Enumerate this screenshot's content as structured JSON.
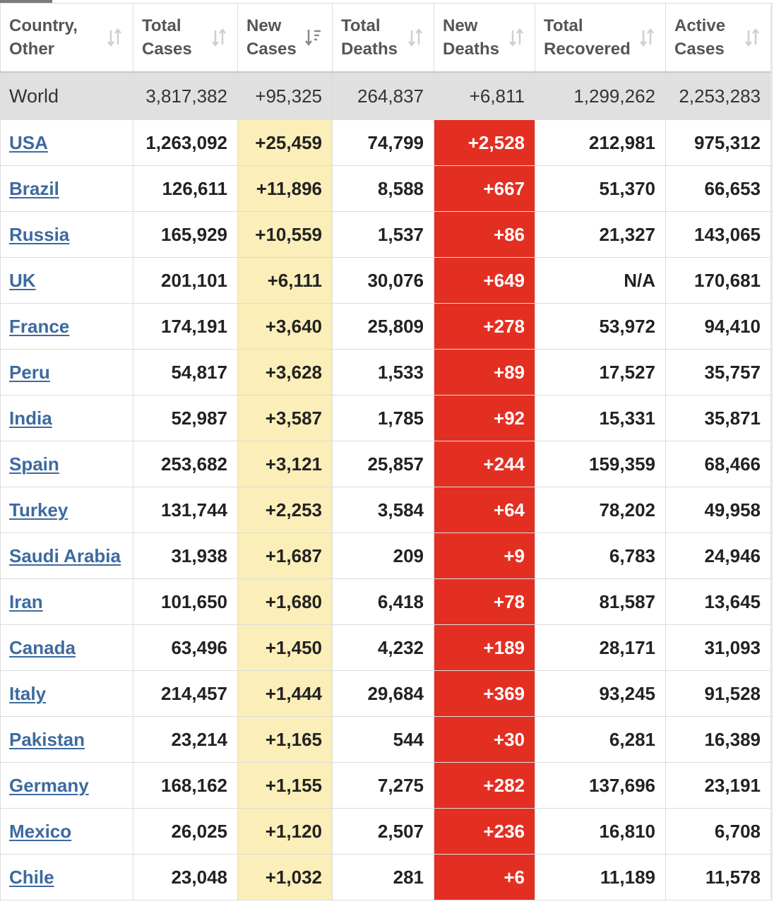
{
  "columns": [
    {
      "line1": "Country,",
      "line2": "Other",
      "sort_icon": "sort-both-icon"
    },
    {
      "line1": "Total",
      "line2": "Cases",
      "sort_icon": "sort-both-icon"
    },
    {
      "line1": "New",
      "line2": "Cases",
      "sort_icon": "sort-desc-active-icon"
    },
    {
      "line1": "Total",
      "line2": "Deaths",
      "sort_icon": "sort-both-icon"
    },
    {
      "line1": "New",
      "line2": "Deaths",
      "sort_icon": "sort-both-icon"
    },
    {
      "line1": "Total",
      "line2": "Recovered",
      "sort_icon": "sort-both-icon"
    },
    {
      "line1": "Active",
      "line2": "Cases",
      "sort_icon": "sort-both-icon"
    }
  ],
  "world": {
    "country": "World",
    "total_cases": "3,817,382",
    "new_cases": "+95,325",
    "total_deaths": "264,837",
    "new_deaths": "+6,811",
    "total_recovered": "1,299,262",
    "active_cases": "2,253,283"
  },
  "rows": [
    {
      "country": "USA",
      "total_cases": "1,263,092",
      "new_cases": "+25,459",
      "total_deaths": "74,799",
      "new_deaths": "+2,528",
      "total_recovered": "212,981",
      "active_cases": "975,312"
    },
    {
      "country": "Brazil",
      "total_cases": "126,611",
      "new_cases": "+11,896",
      "total_deaths": "8,588",
      "new_deaths": "+667",
      "total_recovered": "51,370",
      "active_cases": "66,653"
    },
    {
      "country": "Russia",
      "total_cases": "165,929",
      "new_cases": "+10,559",
      "total_deaths": "1,537",
      "new_deaths": "+86",
      "total_recovered": "21,327",
      "active_cases": "143,065"
    },
    {
      "country": "UK",
      "total_cases": "201,101",
      "new_cases": "+6,111",
      "total_deaths": "30,076",
      "new_deaths": "+649",
      "total_recovered": "N/A",
      "active_cases": "170,681"
    },
    {
      "country": "France",
      "total_cases": "174,191",
      "new_cases": "+3,640",
      "total_deaths": "25,809",
      "new_deaths": "+278",
      "total_recovered": "53,972",
      "active_cases": "94,410"
    },
    {
      "country": "Peru",
      "total_cases": "54,817",
      "new_cases": "+3,628",
      "total_deaths": "1,533",
      "new_deaths": "+89",
      "total_recovered": "17,527",
      "active_cases": "35,757"
    },
    {
      "country": "India",
      "total_cases": "52,987",
      "new_cases": "+3,587",
      "total_deaths": "1,785",
      "new_deaths": "+92",
      "total_recovered": "15,331",
      "active_cases": "35,871"
    },
    {
      "country": "Spain",
      "total_cases": "253,682",
      "new_cases": "+3,121",
      "total_deaths": "25,857",
      "new_deaths": "+244",
      "total_recovered": "159,359",
      "active_cases": "68,466"
    },
    {
      "country": "Turkey",
      "total_cases": "131,744",
      "new_cases": "+2,253",
      "total_deaths": "3,584",
      "new_deaths": "+64",
      "total_recovered": "78,202",
      "active_cases": "49,958"
    },
    {
      "country": "Saudi Arabia",
      "total_cases": "31,938",
      "new_cases": "+1,687",
      "total_deaths": "209",
      "new_deaths": "+9",
      "total_recovered": "6,783",
      "active_cases": "24,946"
    },
    {
      "country": "Iran",
      "total_cases": "101,650",
      "new_cases": "+1,680",
      "total_deaths": "6,418",
      "new_deaths": "+78",
      "total_recovered": "81,587",
      "active_cases": "13,645"
    },
    {
      "country": "Canada",
      "total_cases": "63,496",
      "new_cases": "+1,450",
      "total_deaths": "4,232",
      "new_deaths": "+189",
      "total_recovered": "28,171",
      "active_cases": "31,093"
    },
    {
      "country": "Italy",
      "total_cases": "214,457",
      "new_cases": "+1,444",
      "total_deaths": "29,684",
      "new_deaths": "+369",
      "total_recovered": "93,245",
      "active_cases": "91,528"
    },
    {
      "country": "Pakistan",
      "total_cases": "23,214",
      "new_cases": "+1,165",
      "total_deaths": "544",
      "new_deaths": "+30",
      "total_recovered": "6,281",
      "active_cases": "16,389"
    },
    {
      "country": "Germany",
      "total_cases": "168,162",
      "new_cases": "+1,155",
      "total_deaths": "7,275",
      "new_deaths": "+282",
      "total_recovered": "137,696",
      "active_cases": "23,191"
    },
    {
      "country": "Mexico",
      "total_cases": "26,025",
      "new_cases": "+1,120",
      "total_deaths": "2,507",
      "new_deaths": "+236",
      "total_recovered": "16,810",
      "active_cases": "6,708"
    },
    {
      "country": "Chile",
      "total_cases": "23,048",
      "new_cases": "+1,032",
      "total_deaths": "281",
      "new_deaths": "+6",
      "total_recovered": "11,189",
      "active_cases": "11,578"
    }
  ],
  "colors": {
    "new_cases_bg": "#fbeeb8",
    "new_deaths_bg": "#e32f22",
    "link": "#3d6a9f",
    "world_bg": "#e0e0e0"
  }
}
